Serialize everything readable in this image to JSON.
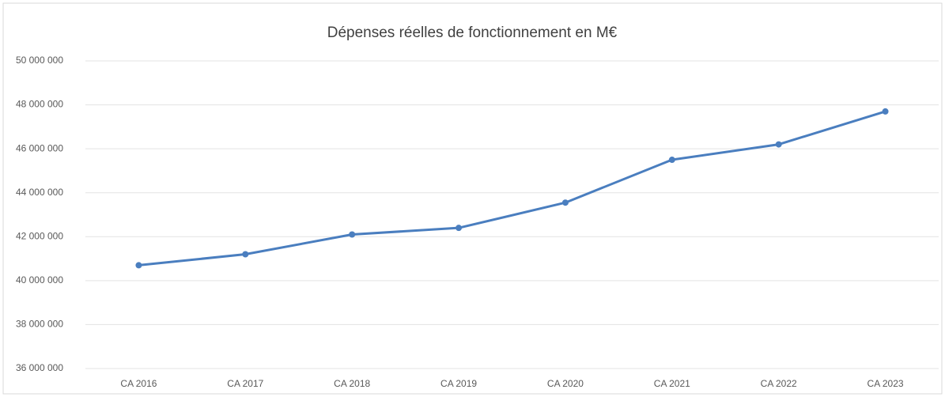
{
  "chart_data": {
    "type": "line",
    "title": "Dépenses réelles de fonctionnement en M€",
    "categories": [
      "CA 2016",
      "CA 2017",
      "CA 2018",
      "CA 2019",
      "CA 2020",
      "CA 2021",
      "CA 2022",
      "CA 2023"
    ],
    "series": [
      {
        "name": "Dépenses réelles de fonctionnement",
        "color": "#4a7ebf",
        "values": [
          40700000,
          41200000,
          42100000,
          42400000,
          43550000,
          45500000,
          46200000,
          47700000
        ]
      }
    ],
    "ylim": [
      36000000,
      50000000
    ],
    "yticks": [
      {
        "value": 36000000,
        "label": "36 000 000"
      },
      {
        "value": 38000000,
        "label": "38 000 000"
      },
      {
        "value": 40000000,
        "label": "40 000 000"
      },
      {
        "value": 42000000,
        "label": "42 000 000"
      },
      {
        "value": 44000000,
        "label": "44 000 000"
      },
      {
        "value": 46000000,
        "label": "46 000 000"
      },
      {
        "value": 48000000,
        "label": "48 000 000"
      },
      {
        "value": 50000000,
        "label": "50 000 000"
      }
    ],
    "grid": true
  }
}
